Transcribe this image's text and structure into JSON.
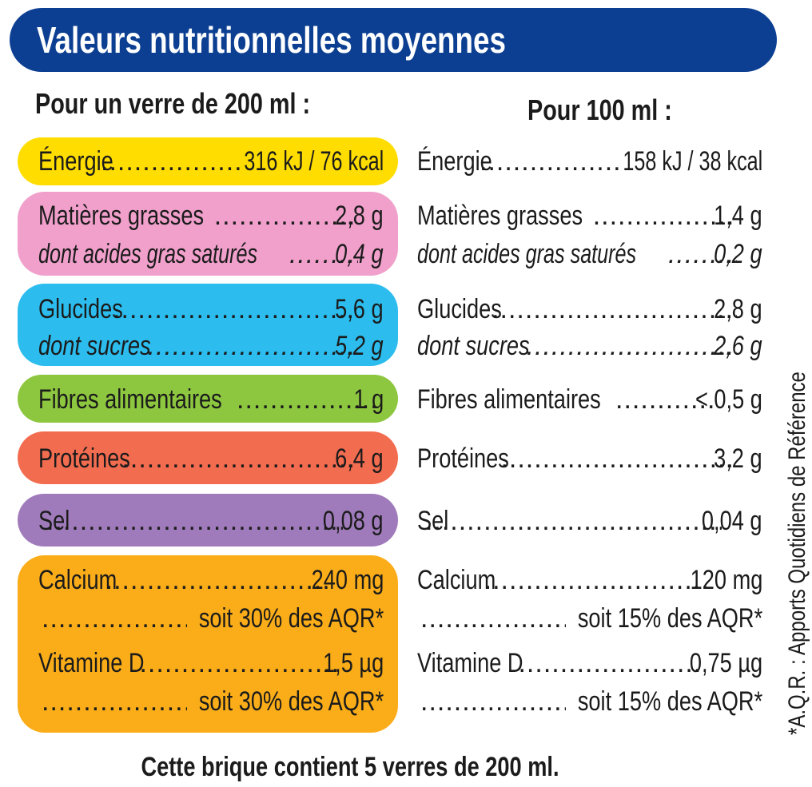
{
  "header": {
    "title": "Valeurs nutritionnelles moyennes"
  },
  "columns": {
    "per_glass": "Pour un verre de 200 ml :",
    "per_100": "Pour 100 ml :"
  },
  "rows": {
    "energie": {
      "label": "Énergie",
      "glass": "316 kJ / 76 kcal",
      "per100": "158 kJ / 38 kcal"
    },
    "lipides": {
      "label": "Matières grasses",
      "glass": "2,8 g",
      "per100": "1,4 g"
    },
    "satures": {
      "label": "dont acides gras saturés",
      "glass": "0,4 g",
      "per100": "0,2 g"
    },
    "glucides": {
      "label": "Glucides",
      "glass": "5,6 g",
      "per100": "2,8 g"
    },
    "sucres": {
      "label": "dont sucres",
      "glass": "5,2 g",
      "per100": "2,6 g"
    },
    "fibres": {
      "label": "Fibres alimentaires",
      "glass": "1 g",
      "per100": "< 0,5 g"
    },
    "proteines": {
      "label": "Protéines",
      "glass": "6,4 g",
      "per100": "3,2 g"
    },
    "sel": {
      "label": "Sel",
      "glass": "0,08 g",
      "per100": "0,04 g"
    },
    "calcium": {
      "label": "Calcium",
      "glass": "240 mg",
      "per100": "120 mg"
    },
    "calcium_aqr": {
      "glass": "soit 30% des AQR*",
      "per100": "soit 15% des AQR*"
    },
    "vitd": {
      "label": "Vitamine D",
      "glass": "1,5 µg",
      "per100": "0,75 µg"
    },
    "vitd_aqr": {
      "glass": "soit 30% des AQR*",
      "per100": "soit 15% des AQR*"
    }
  },
  "side_note": "*A.Q.R. : Apports Quotidiens de Référence",
  "footer": "Cette brique contient 5 verres de 200 ml.",
  "colors": {
    "banner": "#0c3f92",
    "energie": "#ffdd00",
    "lipides": "#f0a0cb",
    "glucides": "#2cbdee",
    "fibres": "#8dc63f",
    "proteines": "#f26c50",
    "sel": "#a07bbb",
    "mineraux": "#faad19"
  }
}
